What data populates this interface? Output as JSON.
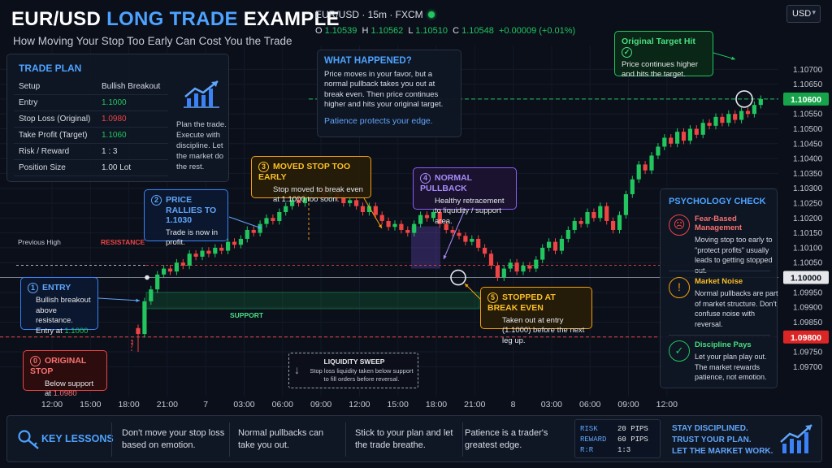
{
  "header": {
    "title_main": "EUR/USD ",
    "title_accent": "LONG TRADE",
    "title_end": " EXAMPLE",
    "subtitle": "How Moving Your Stop Too Early Can Cost You the Trade"
  },
  "toolbar": {
    "symbol": "EUR/USD · 15m · FXCM",
    "currency": "USD",
    "ohlc": {
      "o_label": "O",
      "o": "1.10539",
      "h_label": "H",
      "h": "1.10562",
      "l_label": "L",
      "l": "1.10510",
      "c_label": "C",
      "c": "1.10548",
      "change": "+0.00009 (+0.01%)"
    }
  },
  "trade_plan": {
    "title": "TRADE PLAN",
    "rows": [
      {
        "k": "Setup",
        "v": "Bullish Breakout",
        "color": "#d8dde6"
      },
      {
        "k": "Entry",
        "v": "1.1000",
        "color": "#22c55e"
      },
      {
        "k": "Stop Loss (Original)",
        "v": "1.0980",
        "color": "#ef4444"
      },
      {
        "k": "Take Profit (Target)",
        "v": "1.1060",
        "color": "#22c55e"
      },
      {
        "k": "Risk / Reward",
        "v": "1 : 3",
        "color": "#d8dde6"
      },
      {
        "k": "Position Size",
        "v": "1.00 Lot",
        "color": "#d8dde6"
      }
    ],
    "note": "Plan the trade. Execute with discipline. Let the market do the rest.",
    "icon": "growth-chart-icon"
  },
  "what_happened": {
    "title": "WHAT HAPPENED?",
    "body": "Price moves in your favor, but a normal pullback takes you out at break even. Then price continues higher and hits your original target.",
    "footer": "Patience protects your edge."
  },
  "annotations": {
    "original_target": {
      "title": "Original Target Hit",
      "body": "Price continues higher and hits the target."
    },
    "entry": {
      "num": "1",
      "title": "ENTRY",
      "body1": "Bullish breakout above resistance.",
      "body2": "Entry at ",
      "price": "1.1000"
    },
    "rallies": {
      "num": "2",
      "title": "PRICE RALLIES TO 1.1030",
      "body": "Trade is now in profit."
    },
    "moved_stop": {
      "num": "3",
      "title": "MOVED STOP TOO EARLY",
      "body": "Stop moved to break even at 1.1000 too soon."
    },
    "pullback": {
      "num": "4",
      "title": "NORMAL PULLBACK",
      "body": "Healthy retracement to liquidity / support area."
    },
    "stopped": {
      "num": "5",
      "title": "STOPPED AT BREAK EVEN",
      "body": "Taken out at entry (1.1000) before the next leg up."
    },
    "original_stop": {
      "num": "0",
      "title": "ORIGINAL STOP",
      "body": "Below support at ",
      "price": "1.0980"
    },
    "liquidity": {
      "title": "LIQUIDITY SWEEP",
      "body": "Stop loss liquidity taken below support to fill orders before reversal."
    },
    "previous_high": "Previous High",
    "resistance": "RESISTANCE",
    "support": "SUPPORT"
  },
  "psychology": {
    "title": "PSYCHOLOGY CHECK",
    "items": [
      {
        "title": "Fear-Based Management",
        "body": "Moving stop too early to \"protect profits\" usually leads to getting stopped out.",
        "color": "#ef4444",
        "icon": "brain-icon"
      },
      {
        "title": "Market Noise",
        "body": "Normal pullbacks are part of market structure. Don't confuse noise with reversal.",
        "color": "#f59e0b",
        "icon": "noise-icon"
      },
      {
        "title": "Discipline Pays",
        "body": "Let your plan play out. The market rewards patience, not emotion.",
        "color": "#22c55e",
        "icon": "stopwatch-icon"
      }
    ]
  },
  "lessons": {
    "title": "KEY LESSONS",
    "items": [
      "Don't move your stop loss based on emotion.",
      "Normal pullbacks can take you out.",
      "Stick to your plan and let the trade breathe.",
      "Patience is a trader's greatest edge."
    ],
    "stats": [
      {
        "k": "RISK",
        "v": "20 PIPS"
      },
      {
        "k": "REWARD",
        "v": "60 PIPS"
      },
      {
        "k": "R:R",
        "v": "1:3"
      }
    ],
    "motto": [
      "STAY DISCIPLINED.",
      "TRUST YOUR PLAN.",
      "LET THE MARKET WORK."
    ]
  },
  "chart_data": {
    "type": "candlestick",
    "ylim": [
      1.0966,
      1.1078
    ],
    "yticks": [
      "1.10700",
      "1.10650",
      "1.10600",
      "1.10550",
      "1.10500",
      "1.10450",
      "1.10400",
      "1.10350",
      "1.10300",
      "1.10250",
      "1.10200",
      "1.10150",
      "1.10100",
      "1.10050",
      "1.10000",
      "1.09950",
      "1.09900",
      "1.09850",
      "1.09800",
      "1.09750",
      "1.09700"
    ],
    "xticks": [
      "12:00",
      "15:00",
      "18:00",
      "21:00",
      "7",
      "03:00",
      "06:00",
      "09:00",
      "12:00",
      "15:00",
      "18:00",
      "21:00",
      "8",
      "03:00",
      "06:00",
      "09:00",
      "12:00"
    ],
    "price_labels": [
      {
        "v": "1.10600",
        "color": "#16a34a"
      },
      {
        "v": "1.10000",
        "color": "#e5e7eb"
      },
      {
        "v": "1.09800",
        "color": "#dc2626"
      }
    ],
    "levels": {
      "target": 1.106,
      "entry": 1.1,
      "stop": 1.098,
      "previous_high": 1.1003
    },
    "candles_close": [
      1.0981,
      1.0992,
      1.0996,
      1.1001,
      1.1003,
      1.1002,
      1.1005,
      1.1004,
      1.1008,
      1.1007,
      1.1009,
      1.1008,
      1.101,
      1.1009,
      1.1012,
      1.1011,
      1.1013,
      1.1016,
      1.1015,
      1.1018,
      1.102,
      1.1019,
      1.1022,
      1.1024,
      1.1026,
      1.1025,
      1.1028,
      1.1029,
      1.103,
      1.1028,
      1.1029,
      1.1027,
      1.1025,
      1.1026,
      1.1024,
      1.1022,
      1.1024,
      1.1021,
      1.1019,
      1.1017,
      1.1018,
      1.1016,
      1.1015,
      1.1018,
      1.1021,
      1.102,
      1.1022,
      1.1018,
      1.1016,
      1.1015,
      1.1014,
      1.1012,
      1.1013,
      1.101,
      1.1008,
      1.1004,
      1.1,
      1.1003,
      1.1005,
      1.1002,
      1.1004,
      1.1003,
      1.1006,
      1.101,
      1.1012,
      1.1009,
      1.1013,
      1.1016,
      1.1019,
      1.1018,
      1.1022,
      1.102,
      1.1024,
      1.1019,
      1.1016,
      1.1021,
      1.1028,
      1.1033,
      1.1038,
      1.1036,
      1.1041,
      1.1044,
      1.1047,
      1.1045,
      1.1049,
      1.1046,
      1.105,
      1.1048,
      1.1052,
      1.1051,
      1.1054,
      1.1052,
      1.1055,
      1.1053,
      1.1056,
      1.1055,
      1.1058,
      1.106
    ]
  }
}
